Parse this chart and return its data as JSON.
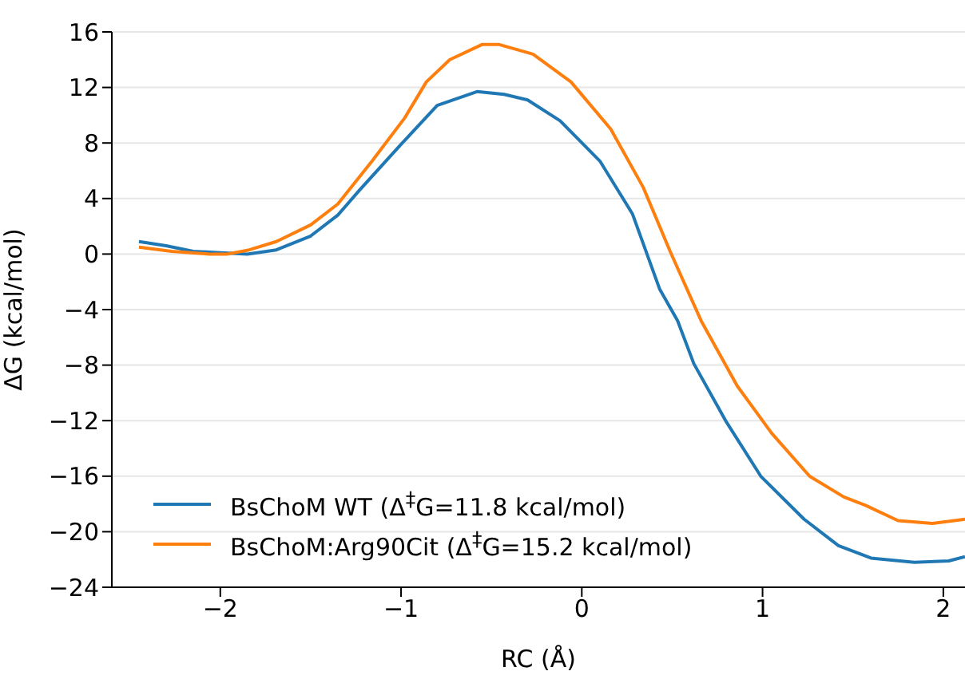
{
  "chart_data": {
    "type": "line",
    "xlabel": "RC (Å)",
    "ylabel": "ΔG (kcal/mol)",
    "xlim": [
      -2.6,
      2.12
    ],
    "xticks": [
      -2,
      -1,
      0,
      1,
      2
    ],
    "ylim": [
      -24,
      16
    ],
    "yticks": [
      -24,
      -20,
      -16,
      -12,
      -8,
      -4,
      0,
      4,
      8,
      12,
      16
    ],
    "grid": "y",
    "legend": "bottom left",
    "marker": "none",
    "line_style": "solid",
    "series": [
      {
        "name": "BsChoM WT (Δ$^{‡}$G=11.8 kcal/mol)",
        "color": "#1f77b4",
        "x": [
          -2.45,
          -2.3,
          -2.15,
          -2.0,
          -1.85,
          -1.69,
          -1.5,
          -1.35,
          -1.23,
          -1.0,
          -0.8,
          -0.58,
          -0.43,
          -0.3,
          -0.12,
          0.1,
          0.28,
          0.43,
          0.53,
          0.62,
          0.8,
          0.99,
          1.23,
          1.42,
          1.6,
          1.84,
          2.03,
          2.12
        ],
        "values": [
          0.9,
          0.6,
          0.2,
          0.1,
          0,
          0.3,
          1.3,
          2.8,
          4.6,
          7.9,
          10.7,
          11.7,
          11.5,
          11.1,
          9.6,
          6.7,
          2.9,
          -2.5,
          -4.8,
          -7.9,
          -12.1,
          -16.0,
          -19.1,
          -21.0,
          -21.9,
          -22.2,
          -22.1,
          -21.8
        ]
      },
      {
        "name": "BsChoM:Arg90Cit (Δ$^{‡}$G=15.2 kcal/mol)",
        "color": "#ff7f0e",
        "x": [
          -2.45,
          -2.27,
          -2.06,
          -1.96,
          -1.84,
          -1.69,
          -1.5,
          -1.35,
          -1.16,
          -0.98,
          -0.86,
          -0.73,
          -0.55,
          -0.46,
          -0.27,
          -0.06,
          0.16,
          0.34,
          0.49,
          0.66,
          0.86,
          1.05,
          1.26,
          1.45,
          1.57,
          1.75,
          1.94,
          2.12
        ],
        "values": [
          0.5,
          0.2,
          0,
          0,
          0.3,
          0.9,
          2.1,
          3.6,
          6.7,
          9.8,
          12.4,
          14.0,
          15.1,
          15.1,
          14.4,
          12.4,
          9.0,
          4.8,
          0.15,
          -4.8,
          -9.5,
          -12.9,
          -16.0,
          -17.5,
          -18.1,
          -19.2,
          -19.4,
          -19.1
        ]
      }
    ]
  }
}
